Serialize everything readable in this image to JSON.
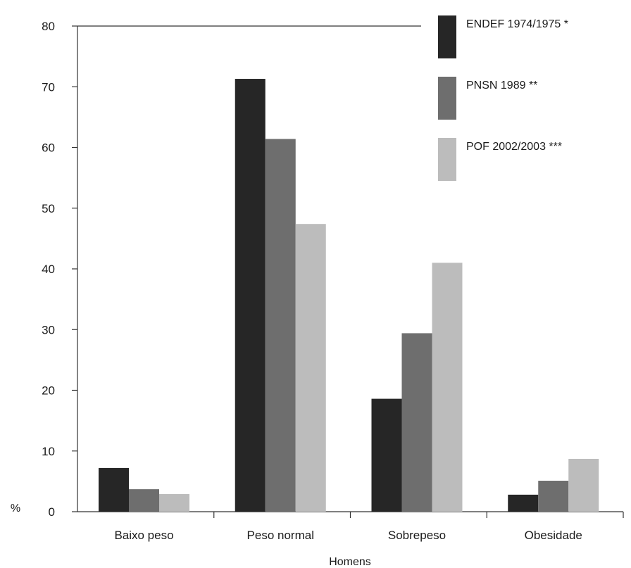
{
  "chart_data": {
    "type": "bar",
    "categories": [
      "Baixo peso",
      "Peso normal",
      "Sobrepeso",
      "Obesidade"
    ],
    "series": [
      {
        "name": "ENDEF 1974/1975 *",
        "values": [
          7.2,
          71.3,
          18.6,
          2.8
        ]
      },
      {
        "name": "PNSN 1989 **",
        "values": [
          3.7,
          61.4,
          29.4,
          5.1
        ]
      },
      {
        "name": "POF 2002/2003 ***",
        "values": [
          2.9,
          47.4,
          41.0,
          8.7
        ]
      }
    ],
    "xlabel": "Homens",
    "ylabel": "%",
    "ylim": [
      0,
      80
    ],
    "yticks": [
      0,
      10,
      20,
      30,
      40,
      50,
      60,
      70,
      80
    ],
    "grid": false,
    "legend_position": "top-right",
    "colors": [
      "#262626",
      "#6e6e6e",
      "#bcbcbc"
    ],
    "axis_color": "#333333"
  }
}
